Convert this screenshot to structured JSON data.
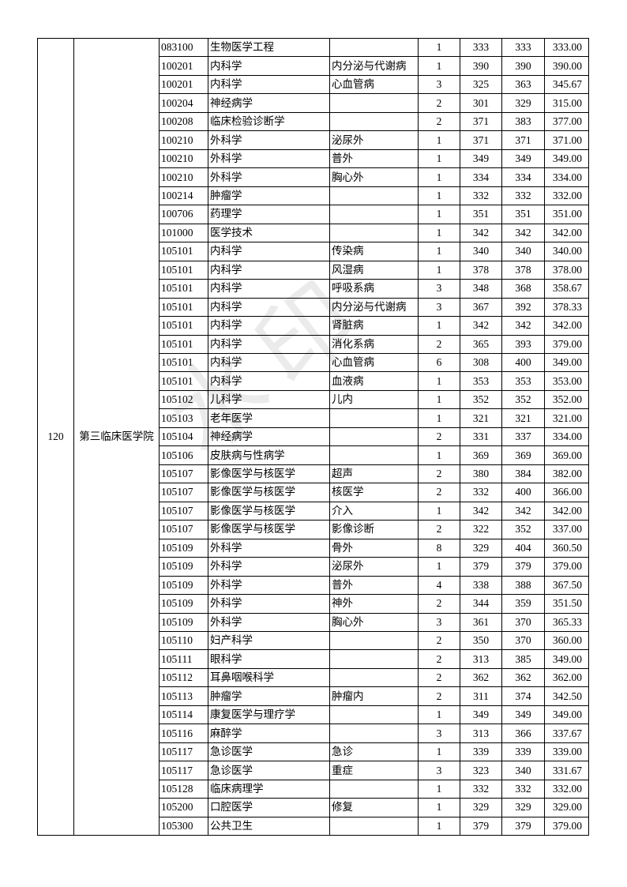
{
  "table": {
    "unit_code": "120",
    "college": "第三临床医学院",
    "rows": [
      [
        "083100",
        "生物医学工程",
        "",
        "1",
        "333",
        "333",
        "333.00"
      ],
      [
        "100201",
        "内科学",
        "内分泌与代谢病",
        "1",
        "390",
        "390",
        "390.00"
      ],
      [
        "100201",
        "内科学",
        "心血管病",
        "3",
        "325",
        "363",
        "345.67"
      ],
      [
        "100204",
        "神经病学",
        "",
        "2",
        "301",
        "329",
        "315.00"
      ],
      [
        "100208",
        "临床检验诊断学",
        "",
        "2",
        "371",
        "383",
        "377.00"
      ],
      [
        "100210",
        "外科学",
        "泌尿外",
        "1",
        "371",
        "371",
        "371.00"
      ],
      [
        "100210",
        "外科学",
        "普外",
        "1",
        "349",
        "349",
        "349.00"
      ],
      [
        "100210",
        "外科学",
        "胸心外",
        "1",
        "334",
        "334",
        "334.00"
      ],
      [
        "100214",
        "肿瘤学",
        "",
        "1",
        "332",
        "332",
        "332.00"
      ],
      [
        "100706",
        "药理学",
        "",
        "1",
        "351",
        "351",
        "351.00"
      ],
      [
        "101000",
        "医学技术",
        "",
        "1",
        "342",
        "342",
        "342.00"
      ],
      [
        "105101",
        "内科学",
        "传染病",
        "1",
        "340",
        "340",
        "340.00"
      ],
      [
        "105101",
        "内科学",
        "风湿病",
        "1",
        "378",
        "378",
        "378.00"
      ],
      [
        "105101",
        "内科学",
        "呼吸系病",
        "3",
        "348",
        "368",
        "358.67"
      ],
      [
        "105101",
        "内科学",
        "内分泌与代谢病",
        "3",
        "367",
        "392",
        "378.33"
      ],
      [
        "105101",
        "内科学",
        "肾脏病",
        "1",
        "342",
        "342",
        "342.00"
      ],
      [
        "105101",
        "内科学",
        "消化系病",
        "2",
        "365",
        "393",
        "379.00"
      ],
      [
        "105101",
        "内科学",
        "心血管病",
        "6",
        "308",
        "400",
        "349.00"
      ],
      [
        "105101",
        "内科学",
        "血液病",
        "1",
        "353",
        "353",
        "353.00"
      ],
      [
        "105102",
        "儿科学",
        "儿内",
        "1",
        "352",
        "352",
        "352.00"
      ],
      [
        "105103",
        "老年医学",
        "",
        "1",
        "321",
        "321",
        "321.00"
      ],
      [
        "105104",
        "神经病学",
        "",
        "2",
        "331",
        "337",
        "334.00"
      ],
      [
        "105106",
        "皮肤病与性病学",
        "",
        "1",
        "369",
        "369",
        "369.00"
      ],
      [
        "105107",
        "影像医学与核医学",
        "超声",
        "2",
        "380",
        "384",
        "382.00"
      ],
      [
        "105107",
        "影像医学与核医学",
        "核医学",
        "2",
        "332",
        "400",
        "366.00"
      ],
      [
        "105107",
        "影像医学与核医学",
        "介入",
        "1",
        "342",
        "342",
        "342.00"
      ],
      [
        "105107",
        "影像医学与核医学",
        "影像诊断",
        "2",
        "322",
        "352",
        "337.00"
      ],
      [
        "105109",
        "外科学",
        "骨外",
        "8",
        "329",
        "404",
        "360.50"
      ],
      [
        "105109",
        "外科学",
        "泌尿外",
        "1",
        "379",
        "379",
        "379.00"
      ],
      [
        "105109",
        "外科学",
        "普外",
        "4",
        "338",
        "388",
        "367.50"
      ],
      [
        "105109",
        "外科学",
        "神外",
        "2",
        "344",
        "359",
        "351.50"
      ],
      [
        "105109",
        "外科学",
        "胸心外",
        "3",
        "361",
        "370",
        "365.33"
      ],
      [
        "105110",
        "妇产科学",
        "",
        "2",
        "350",
        "370",
        "360.00"
      ],
      [
        "105111",
        "眼科学",
        "",
        "2",
        "313",
        "385",
        "349.00"
      ],
      [
        "105112",
        "耳鼻咽喉科学",
        "",
        "2",
        "362",
        "362",
        "362.00"
      ],
      [
        "105113",
        "肿瘤学",
        "肿瘤内",
        "2",
        "311",
        "374",
        "342.50"
      ],
      [
        "105114",
        "康复医学与理疗学",
        "",
        "1",
        "349",
        "349",
        "349.00"
      ],
      [
        "105116",
        "麻醉学",
        "",
        "3",
        "313",
        "366",
        "337.67"
      ],
      [
        "105117",
        "急诊医学",
        "急诊",
        "1",
        "339",
        "339",
        "339.00"
      ],
      [
        "105117",
        "急诊医学",
        "重症",
        "3",
        "323",
        "340",
        "331.67"
      ],
      [
        "105128",
        "临床病理学",
        "",
        "1",
        "332",
        "332",
        "332.00"
      ],
      [
        "105200",
        "口腔医学",
        "修复",
        "1",
        "329",
        "329",
        "329.00"
      ],
      [
        "105300",
        "公共卫生",
        "",
        "1",
        "379",
        "379",
        "379.00"
      ]
    ]
  },
  "watermark": "水印"
}
